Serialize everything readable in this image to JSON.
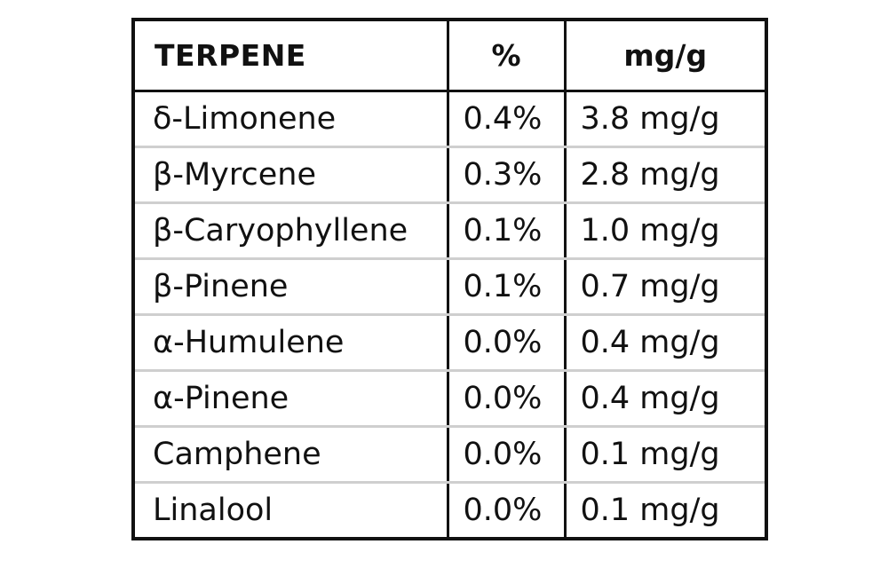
{
  "table": {
    "headers": {
      "terpene": "TERPENE",
      "percent": "%",
      "mg_per_g": "mg/g"
    },
    "rows": [
      {
        "terpene": "δ-Limonene",
        "percent": "0.4%",
        "mg_per_g": "3.8 mg/g"
      },
      {
        "terpene": "β-Myrcene",
        "percent": "0.3%",
        "mg_per_g": "2.8 mg/g"
      },
      {
        "terpene": "β-Caryophyllene",
        "percent": "0.1%",
        "mg_per_g": "1.0 mg/g"
      },
      {
        "terpene": "β-Pinene",
        "percent": "0.1%",
        "mg_per_g": "0.7 mg/g"
      },
      {
        "terpene": "α-Humulene",
        "percent": "0.0%",
        "mg_per_g": "0.4 mg/g"
      },
      {
        "terpene": "α-Pinene",
        "percent": "0.0%",
        "mg_per_g": "0.4 mg/g"
      },
      {
        "terpene": "Camphene",
        "percent": "0.0%",
        "mg_per_g": "0.1 mg/g"
      },
      {
        "terpene": "Linalool",
        "percent": "0.0%",
        "mg_per_g": "0.1 mg/g"
      }
    ]
  },
  "colors": {
    "border": "#111111",
    "row_divider": "#cfcfcf",
    "text": "#111111",
    "background": "#ffffff"
  }
}
